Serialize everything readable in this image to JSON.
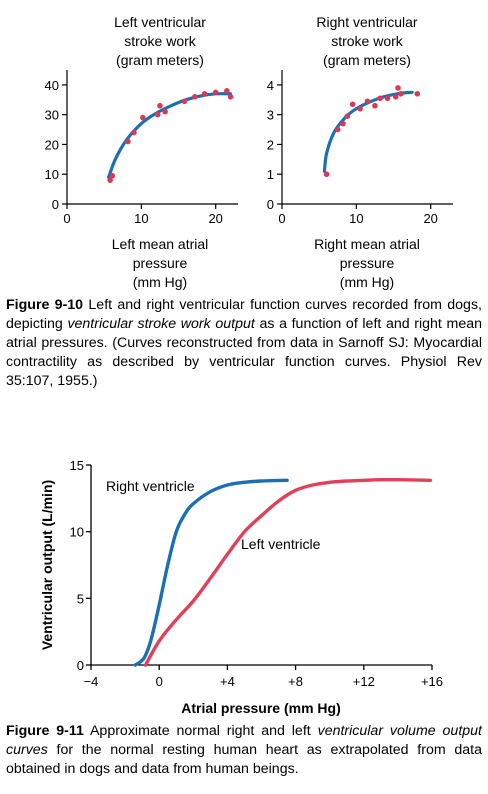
{
  "figure_9_10": {
    "caption": {
      "label": "Figure 9-10",
      "text_1": " Left and right ventricular function curves recorded from dogs, depicting ",
      "text_italic": "ventricular stroke work output",
      "text_2": " as a function of left and right mean atrial pressures. (Curves reconstructed from data in Sarnoff SJ: Myocardial contractility as described by ventricular function curves. Physiol Rev 35:107, 1955.)"
    }
  },
  "figure_9_11": {
    "caption": {
      "label": "Figure 9-11",
      "text_1": " Approximate normal right and left ",
      "text_italic": "ventricular volume output curves",
      "text_2": " for the normal resting human heart as extrapolated from data obtained in dogs and data from human beings."
    }
  },
  "colors": {
    "blue_curve": "#1a6fb5",
    "red_curve": "#e0415a",
    "points": "#d63a57"
  },
  "chart_data": [
    {
      "type": "scatter",
      "title": "Left ventricular stroke work (gram meters)",
      "title_lines": [
        "Left ventricular",
        "stroke work",
        "(gram meters)"
      ],
      "xlabel_lines": [
        "Left mean atrial",
        "pressure",
        "(mm Hg)"
      ],
      "xlim": [
        0,
        23
      ],
      "ylim": [
        0,
        45
      ],
      "xticks": [
        0,
        10,
        20
      ],
      "yticks": [
        0,
        10,
        20,
        30,
        40
      ],
      "points": [
        [
          5.8,
          8
        ],
        [
          6.1,
          9.5
        ],
        [
          8.2,
          21
        ],
        [
          9.0,
          24
        ],
        [
          10.2,
          29
        ],
        [
          12.2,
          30
        ],
        [
          12.5,
          33
        ],
        [
          13.2,
          31
        ],
        [
          15.8,
          34.5
        ],
        [
          17.2,
          36
        ],
        [
          18.5,
          37
        ],
        [
          20.0,
          37.5
        ],
        [
          21.5,
          38
        ],
        [
          22.0,
          36
        ]
      ],
      "curve": [
        [
          5.6,
          9
        ],
        [
          6.5,
          15
        ],
        [
          8,
          21.5
        ],
        [
          10,
          27
        ],
        [
          12,
          30.5
        ],
        [
          14,
          33
        ],
        [
          16,
          35
        ],
        [
          18,
          36.3
        ],
        [
          20,
          37
        ],
        [
          22,
          37
        ]
      ]
    },
    {
      "type": "scatter",
      "title": "Right ventricular stroke work (gram meters)",
      "title_lines": [
        "Right ventricular",
        "stroke work",
        "(gram meters)"
      ],
      "xlabel_lines": [
        "Right mean atrial",
        "pressure",
        "(mm Hg)"
      ],
      "xlim": [
        0,
        23
      ],
      "ylim": [
        0,
        4.5
      ],
      "xticks": [
        0,
        10,
        20
      ],
      "yticks": [
        0,
        1,
        2,
        3,
        4
      ],
      "points": [
        [
          6.0,
          1.0
        ],
        [
          7.5,
          2.5
        ],
        [
          8.2,
          2.7
        ],
        [
          8.8,
          2.95
        ],
        [
          9.5,
          3.35
        ],
        [
          10.5,
          3.2
        ],
        [
          11.5,
          3.45
        ],
        [
          12.5,
          3.3
        ],
        [
          13.2,
          3.55
        ],
        [
          14.2,
          3.55
        ],
        [
          15.3,
          3.6
        ],
        [
          15.6,
          3.9
        ],
        [
          16.0,
          3.7
        ],
        [
          18.2,
          3.7
        ]
      ],
      "curve": [
        [
          5.7,
          1.1
        ],
        [
          6,
          1.7
        ],
        [
          7,
          2.4
        ],
        [
          8.5,
          2.9
        ],
        [
          10,
          3.2
        ],
        [
          12,
          3.45
        ],
        [
          14,
          3.62
        ],
        [
          16,
          3.72
        ],
        [
          17.5,
          3.75
        ]
      ]
    },
    {
      "type": "line",
      "xlabel": "Atrial pressure (mm Hg)",
      "ylabel": "Ventricular output (L/min)",
      "xlim": [
        -4,
        16
      ],
      "ylim": [
        0,
        15
      ],
      "xticks": [
        -4,
        0,
        4,
        8,
        12,
        16
      ],
      "xtick_labels": [
        "−4",
        "0",
        "+4",
        "+8",
        "+12",
        "+16"
      ],
      "yticks": [
        0,
        5,
        10,
        15
      ],
      "series": [
        {
          "name": "Right ventricle",
          "x": [
            -1.4,
            -0.9,
            -0.5,
            0,
            0.5,
            1,
            1.5,
            2,
            3,
            4,
            5,
            6,
            7.5
          ],
          "y": [
            0,
            0.5,
            1.8,
            4.5,
            7.5,
            10,
            11.3,
            12.1,
            13,
            13.5,
            13.7,
            13.8,
            13.85
          ]
        },
        {
          "name": "Left ventricle",
          "x": [
            -0.8,
            0,
            1,
            2,
            3,
            4,
            5,
            6,
            7,
            8,
            9,
            10,
            11,
            12,
            13,
            14,
            15.9
          ],
          "y": [
            0,
            1.8,
            3.4,
            4.8,
            6.5,
            8.3,
            10,
            11.2,
            12.3,
            13.1,
            13.5,
            13.7,
            13.8,
            13.85,
            13.9,
            13.9,
            13.85
          ]
        }
      ]
    }
  ]
}
